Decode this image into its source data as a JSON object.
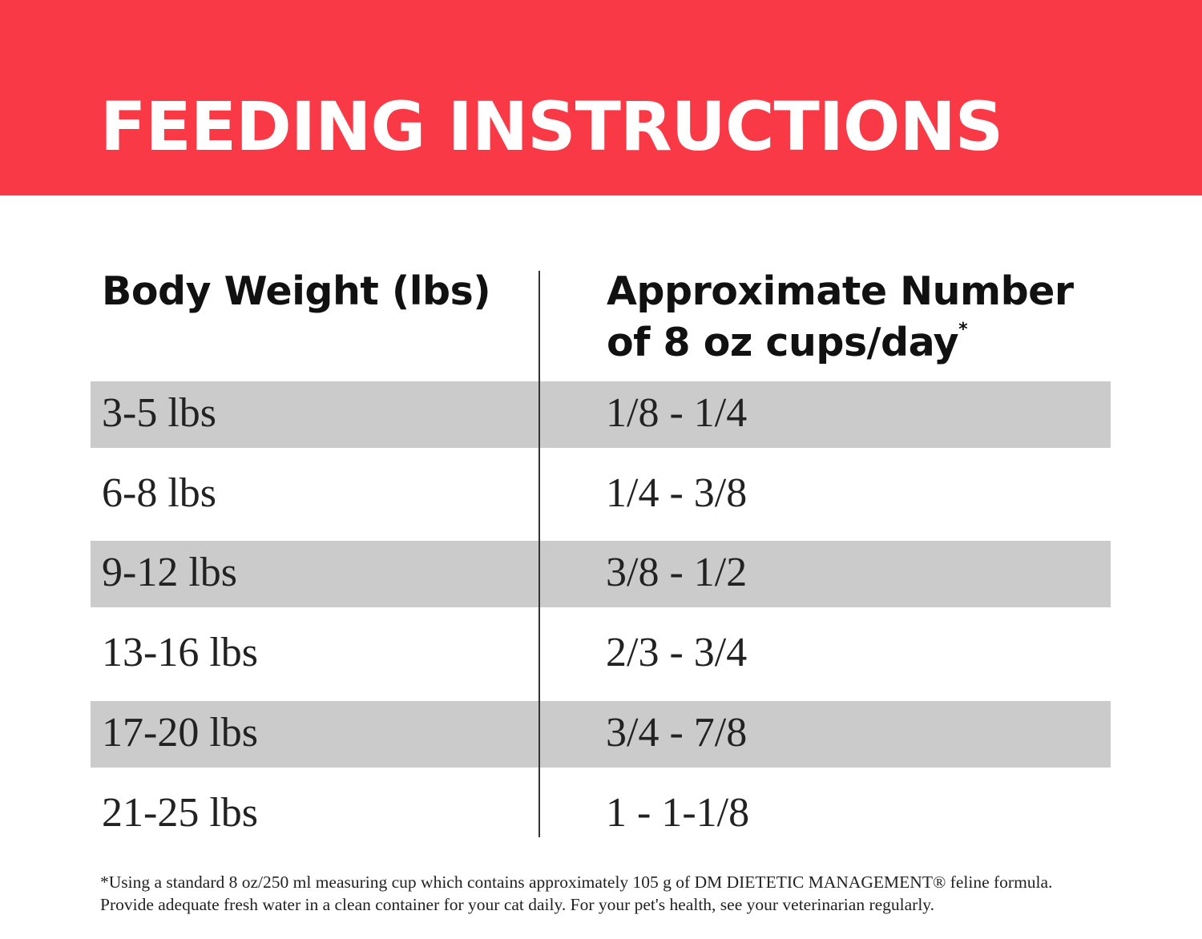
{
  "header": {
    "title": "FEEDING INSTRUCTIONS"
  },
  "table": {
    "columns": [
      {
        "text": "Body Weight (lbs)"
      },
      {
        "text": "Approximate Number of 8 oz cups/day",
        "marker": "*"
      }
    ],
    "rows": [
      [
        "3-5 lbs",
        "1/8 - 1/4"
      ],
      [
        "6-8 lbs",
        "1/4 - 3/8"
      ],
      [
        "9-12 lbs",
        "3/8 - 1/2"
      ],
      [
        "13-16 lbs",
        "2/3 - 3/4"
      ],
      [
        "17-20 lbs",
        "3/4 - 7/8"
      ],
      [
        "21-25 lbs",
        "1 - 1-1/8"
      ]
    ]
  },
  "footnote": "*Using a standard 8 oz/250 ml measuring cup which contains approximately 105 g of DM DIETETIC MANAGEMENT® feline formula. Provide adequate fresh water in a clean container for your cat daily. For your pet's health, see your veterinarian regularly."
}
